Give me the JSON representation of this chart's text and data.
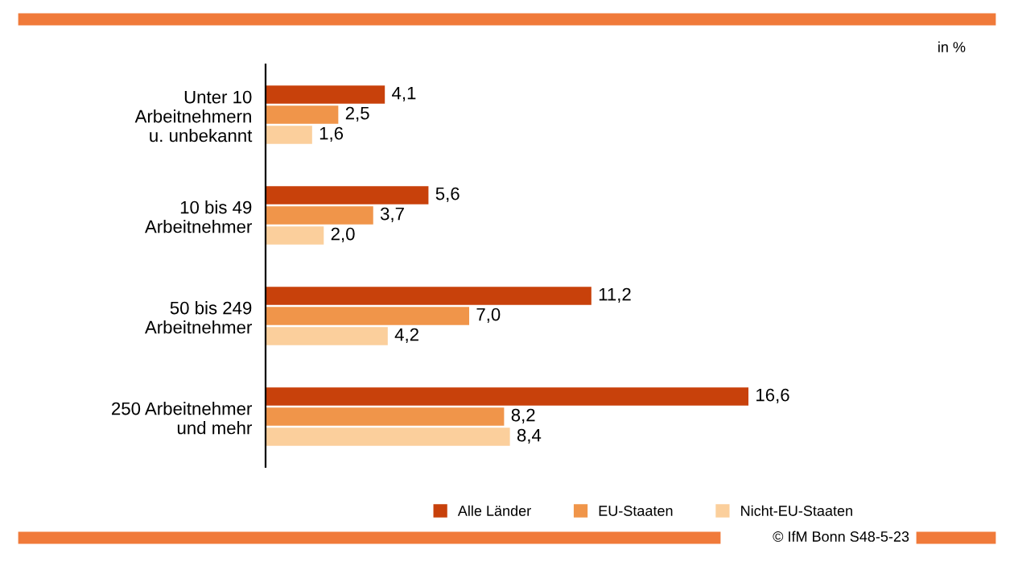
{
  "chart_data": {
    "type": "bar",
    "orientation": "horizontal",
    "categories": [
      "Unter 10\nArbeitnehmern\nu. unbekannt",
      "10 bis 49\nArbeitnehmer",
      "50 bis 249\nArbeitnehmer",
      "250 Arbeitnehmer\nund mehr"
    ],
    "series": [
      {
        "name": "Alle Länder",
        "color": "#c8410b",
        "values": [
          4.1,
          5.6,
          11.2,
          16.6
        ],
        "value_labels": [
          "4,1",
          "5,6",
          "11,2",
          "16,6"
        ]
      },
      {
        "name": "EU-Staaten",
        "color": "#f0954a",
        "values": [
          2.5,
          3.7,
          7.0,
          8.2
        ],
        "value_labels": [
          "2,5",
          "3,7",
          "7,0",
          "8,2"
        ]
      },
      {
        "name": "Nicht-EU-Staaten",
        "color": "#fbcf9c",
        "values": [
          1.6,
          2.0,
          4.2,
          8.4
        ],
        "value_labels": [
          "1,6",
          "2,0",
          "4,2",
          "8,4"
        ]
      }
    ],
    "legend": "bottom",
    "grid": false,
    "annotations": [
      "in %",
      "© IfM Bonn S48-5-23"
    ]
  }
}
